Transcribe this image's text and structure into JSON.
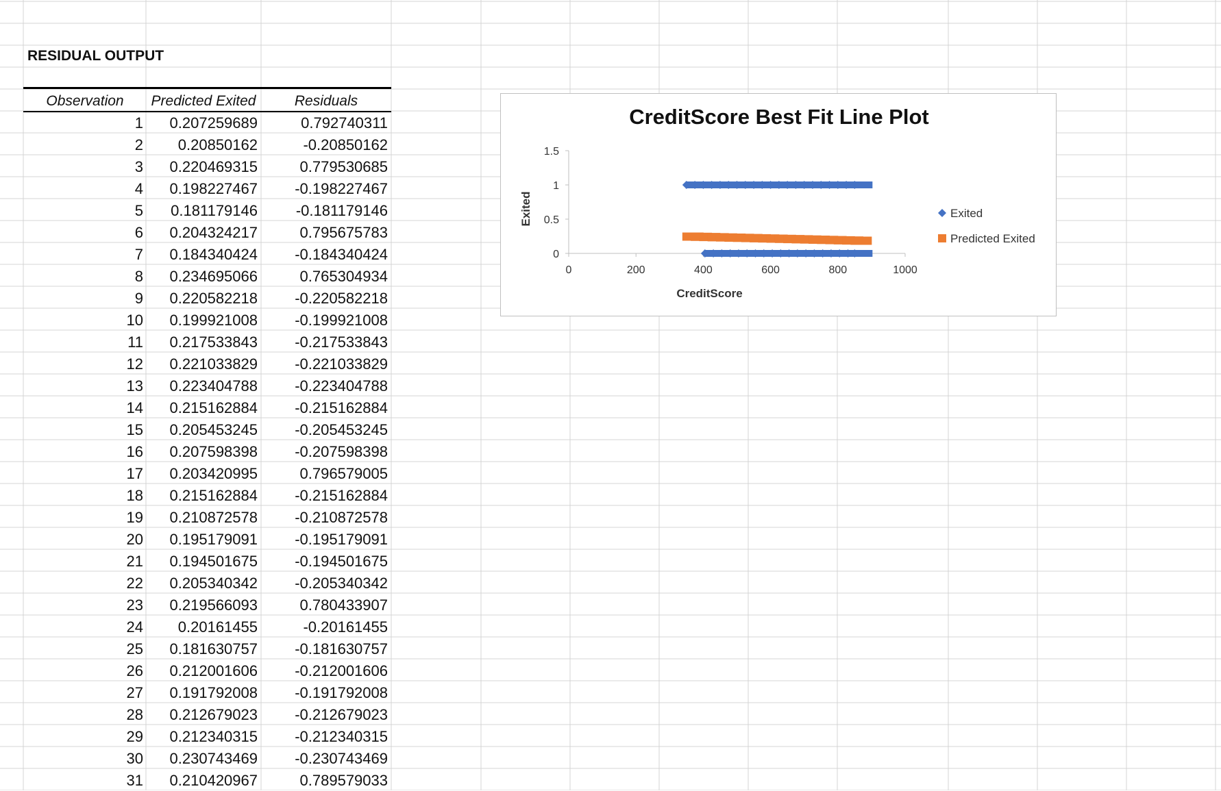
{
  "sheet": {
    "section_title": "RESIDUAL OUTPUT",
    "headers": {
      "observation": "Observation",
      "predicted": "Predicted Exited",
      "residuals": "Residuals"
    },
    "rows": [
      {
        "obs": "1",
        "pred": "0.207259689",
        "res": "0.792740311"
      },
      {
        "obs": "2",
        "pred": "0.20850162",
        "res": "-0.20850162"
      },
      {
        "obs": "3",
        "pred": "0.220469315",
        "res": "0.779530685"
      },
      {
        "obs": "4",
        "pred": "0.198227467",
        "res": "-0.198227467"
      },
      {
        "obs": "5",
        "pred": "0.181179146",
        "res": "-0.181179146"
      },
      {
        "obs": "6",
        "pred": "0.204324217",
        "res": "0.795675783"
      },
      {
        "obs": "7",
        "pred": "0.184340424",
        "res": "-0.184340424"
      },
      {
        "obs": "8",
        "pred": "0.234695066",
        "res": "0.765304934"
      },
      {
        "obs": "9",
        "pred": "0.220582218",
        "res": "-0.220582218"
      },
      {
        "obs": "10",
        "pred": "0.199921008",
        "res": "-0.199921008"
      },
      {
        "obs": "11",
        "pred": "0.217533843",
        "res": "-0.217533843"
      },
      {
        "obs": "12",
        "pred": "0.221033829",
        "res": "-0.221033829"
      },
      {
        "obs": "13",
        "pred": "0.223404788",
        "res": "-0.223404788"
      },
      {
        "obs": "14",
        "pred": "0.215162884",
        "res": "-0.215162884"
      },
      {
        "obs": "15",
        "pred": "0.205453245",
        "res": "-0.205453245"
      },
      {
        "obs": "16",
        "pred": "0.207598398",
        "res": "-0.207598398"
      },
      {
        "obs": "17",
        "pred": "0.203420995",
        "res": "0.796579005"
      },
      {
        "obs": "18",
        "pred": "0.215162884",
        "res": "-0.215162884"
      },
      {
        "obs": "19",
        "pred": "0.210872578",
        "res": "-0.210872578"
      },
      {
        "obs": "20",
        "pred": "0.195179091",
        "res": "-0.195179091"
      },
      {
        "obs": "21",
        "pred": "0.194501675",
        "res": "-0.194501675"
      },
      {
        "obs": "22",
        "pred": "0.205340342",
        "res": "-0.205340342"
      },
      {
        "obs": "23",
        "pred": "0.219566093",
        "res": "0.780433907"
      },
      {
        "obs": "24",
        "pred": "0.20161455",
        "res": "-0.20161455"
      },
      {
        "obs": "25",
        "pred": "0.181630757",
        "res": "-0.181630757"
      },
      {
        "obs": "26",
        "pred": "0.212001606",
        "res": "-0.212001606"
      },
      {
        "obs": "27",
        "pred": "0.191792008",
        "res": "-0.191792008"
      },
      {
        "obs": "28",
        "pred": "0.212679023",
        "res": "-0.212679023"
      },
      {
        "obs": "29",
        "pred": "0.212340315",
        "res": "-0.212340315"
      },
      {
        "obs": "30",
        "pred": "0.230743469",
        "res": "-0.230743469"
      },
      {
        "obs": "31",
        "pred": "0.210420967",
        "res": "0.789579033"
      }
    ]
  },
  "chart_data": {
    "type": "scatter",
    "title": "CreditScore Best Fit Line Plot",
    "xlabel": "CreditScore",
    "ylabel": "Exited",
    "xlim": [
      0,
      1000
    ],
    "ylim": [
      0,
      1.5
    ],
    "xticks": [
      "0",
      "200",
      "400",
      "600",
      "800",
      "1000"
    ],
    "yticks": [
      "0",
      "0.5",
      "1",
      "1.5"
    ],
    "grid": false,
    "legend_position": "right",
    "series": [
      {
        "name": "Exited",
        "marker": "diamond",
        "color": "#4472C4",
        "points": [
          {
            "x": 350,
            "y": 1
          },
          {
            "x": 375,
            "y": 1
          },
          {
            "x": 400,
            "y": 1
          },
          {
            "x": 425,
            "y": 1
          },
          {
            "x": 450,
            "y": 1
          },
          {
            "x": 475,
            "y": 1
          },
          {
            "x": 500,
            "y": 1
          },
          {
            "x": 525,
            "y": 1
          },
          {
            "x": 550,
            "y": 1
          },
          {
            "x": 575,
            "y": 1
          },
          {
            "x": 600,
            "y": 1
          },
          {
            "x": 625,
            "y": 1
          },
          {
            "x": 650,
            "y": 1
          },
          {
            "x": 675,
            "y": 1
          },
          {
            "x": 700,
            "y": 1
          },
          {
            "x": 725,
            "y": 1
          },
          {
            "x": 750,
            "y": 1
          },
          {
            "x": 775,
            "y": 1
          },
          {
            "x": 800,
            "y": 1
          },
          {
            "x": 825,
            "y": 1
          },
          {
            "x": 850,
            "y": 1
          },
          {
            "x": 405,
            "y": 0
          },
          {
            "x": 430,
            "y": 0
          },
          {
            "x": 455,
            "y": 0
          },
          {
            "x": 480,
            "y": 0
          },
          {
            "x": 505,
            "y": 0
          },
          {
            "x": 530,
            "y": 0
          },
          {
            "x": 555,
            "y": 0
          },
          {
            "x": 580,
            "y": 0
          },
          {
            "x": 605,
            "y": 0
          },
          {
            "x": 630,
            "y": 0
          },
          {
            "x": 655,
            "y": 0
          },
          {
            "x": 680,
            "y": 0
          },
          {
            "x": 705,
            "y": 0
          },
          {
            "x": 730,
            "y": 0
          },
          {
            "x": 755,
            "y": 0
          },
          {
            "x": 780,
            "y": 0
          },
          {
            "x": 805,
            "y": 0
          },
          {
            "x": 830,
            "y": 0
          },
          {
            "x": 850,
            "y": 0
          }
        ]
      },
      {
        "name": "Predicted Exited",
        "marker": "square",
        "color": "#ED7D31",
        "points": [
          {
            "x": 350,
            "y": 0.245
          },
          {
            "x": 375,
            "y": 0.242
          },
          {
            "x": 400,
            "y": 0.239
          },
          {
            "x": 425,
            "y": 0.236
          },
          {
            "x": 450,
            "y": 0.233
          },
          {
            "x": 475,
            "y": 0.23
          },
          {
            "x": 500,
            "y": 0.227
          },
          {
            "x": 525,
            "y": 0.224
          },
          {
            "x": 550,
            "y": 0.221
          },
          {
            "x": 575,
            "y": 0.218
          },
          {
            "x": 600,
            "y": 0.215
          },
          {
            "x": 625,
            "y": 0.212
          },
          {
            "x": 650,
            "y": 0.209
          },
          {
            "x": 675,
            "y": 0.206
          },
          {
            "x": 700,
            "y": 0.203
          },
          {
            "x": 725,
            "y": 0.2
          },
          {
            "x": 750,
            "y": 0.197
          },
          {
            "x": 775,
            "y": 0.194
          },
          {
            "x": 800,
            "y": 0.191
          },
          {
            "x": 825,
            "y": 0.188
          },
          {
            "x": 850,
            "y": 0.185
          }
        ]
      }
    ]
  }
}
